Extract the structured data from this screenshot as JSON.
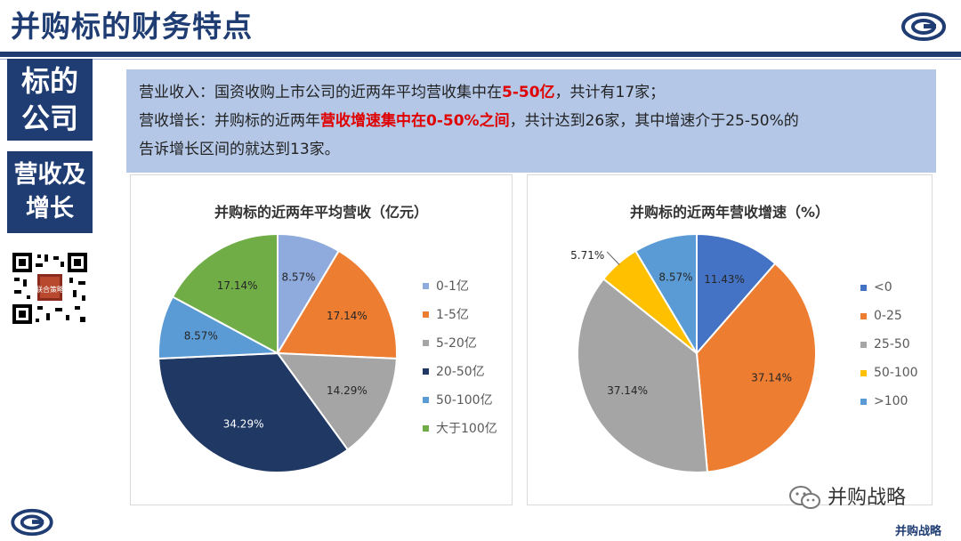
{
  "header": {
    "title": "并购标的财务特点"
  },
  "sidebar": {
    "box1": [
      "标的",
      "公司"
    ],
    "box2": [
      "营收及",
      "增长"
    ],
    "qr_caption": "联合策略"
  },
  "summary": {
    "line1_prefix": "营业收入：国资收购上市公司的近两年平均营收集中在",
    "line1_highlight": "5-50亿",
    "line1_suffix": "，共计有17家；",
    "line2_prefix": "营收增长：并购标的近两年",
    "line2_highlight": "营收增速集中在0-50%之间",
    "line2_suffix": "，共计达到26家，其中增速介于25-50%的",
    "line3": "告诉增长区间的就达到13家。"
  },
  "watermark": {
    "text": "并购战略",
    "brand": "并购战略"
  },
  "chart_data": [
    {
      "type": "pie",
      "title": "并购标的近两年平均营收（亿元）",
      "labels": [
        "0-1亿",
        "1-5亿",
        "5-20亿",
        "20-50亿",
        "50-100亿",
        "大于100亿"
      ],
      "values": [
        8.57,
        17.14,
        14.29,
        34.29,
        8.57,
        17.14
      ],
      "value_labels": [
        "8.57%",
        "17.14%",
        "14.29%",
        "34.29%",
        "8.57%",
        "17.14%"
      ],
      "colors": [
        "#8faadc",
        "#ed7d31",
        "#a5a5a5",
        "#203864",
        "#5b9bd5",
        "#70ad47"
      ],
      "legend": "right"
    },
    {
      "type": "pie",
      "title": "并购标的近两年营收增速（%）",
      "labels": [
        "<0",
        "0-25",
        "25-50",
        "50-100",
        ">100"
      ],
      "values": [
        11.43,
        37.14,
        37.14,
        5.71,
        8.57
      ],
      "value_labels": [
        "11.43%",
        "37.14%",
        "37.14%",
        "5.71%",
        "8.57%"
      ],
      "colors": [
        "#4472c4",
        "#ed7d31",
        "#a5a5a5",
        "#ffc000",
        "#5b9bd5"
      ],
      "legend": "right"
    }
  ]
}
